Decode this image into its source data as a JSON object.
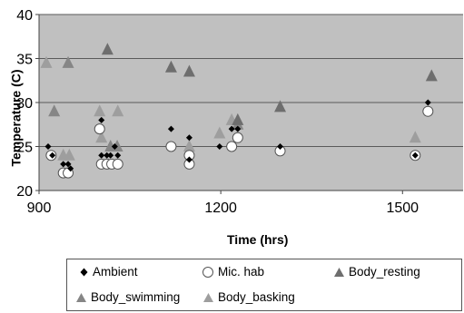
{
  "chart_data": {
    "type": "scatter",
    "title": "",
    "xlabel": "Time (hrs)",
    "ylabel": "Temperature (C)",
    "xlim": [
      900,
      1600
    ],
    "ylim": [
      20,
      40
    ],
    "xticks": [
      900,
      1200,
      1500
    ],
    "yticks": [
      20,
      25,
      30,
      35,
      40
    ],
    "grid": true,
    "legend_position": "bottom",
    "plot_background": "#c0c0c0",
    "series": [
      {
        "name": "Ambient",
        "marker": "diamond",
        "color": "#000000",
        "points": [
          [
            915,
            25
          ],
          [
            922,
            24
          ],
          [
            940,
            23
          ],
          [
            948,
            23
          ],
          [
            952,
            22.5
          ],
          [
            1003,
            28
          ],
          [
            1003,
            24
          ],
          [
            1012,
            24
          ],
          [
            1018,
            24
          ],
          [
            1025,
            25
          ],
          [
            1030,
            24
          ],
          [
            1118,
            27
          ],
          [
            1148,
            26
          ],
          [
            1148,
            23.5
          ],
          [
            1198,
            25
          ],
          [
            1218,
            27
          ],
          [
            1228,
            27
          ],
          [
            1298,
            25
          ],
          [
            1521,
            24
          ],
          [
            1542,
            30
          ]
        ]
      },
      {
        "name": "Mic. hab",
        "marker": "circle-open",
        "color": "#ffffff",
        "points": [
          [
            920,
            24
          ],
          [
            940,
            22
          ],
          [
            948,
            22
          ],
          [
            1000,
            27
          ],
          [
            1003,
            23
          ],
          [
            1012,
            23
          ],
          [
            1020,
            23
          ],
          [
            1030,
            23
          ],
          [
            1118,
            25
          ],
          [
            1148,
            24
          ],
          [
            1148,
            23
          ],
          [
            1218,
            25
          ],
          [
            1228,
            26
          ],
          [
            1298,
            24.5
          ],
          [
            1521,
            24
          ],
          [
            1542,
            29
          ]
        ]
      },
      {
        "name": "Body_resting",
        "marker": "triangle",
        "color": "#6e6e6e",
        "points": [
          [
            1013,
            36
          ],
          [
            1118,
            34
          ],
          [
            1148,
            33.5
          ],
          [
            1228,
            28
          ],
          [
            1298,
            29.5
          ],
          [
            1548,
            33
          ]
        ]
      },
      {
        "name": "Body_swimming",
        "marker": "triangle",
        "color": "#868686",
        "points": [
          [
            925,
            29
          ],
          [
            948,
            34.5
          ],
          [
            1018,
            25
          ],
          [
            1029,
            25
          ],
          [
            1228,
            27.5
          ]
        ]
      },
      {
        "name": "Body_basking",
        "marker": "triangle",
        "color": "#9e9e9e",
        "points": [
          [
            912,
            34.5
          ],
          [
            940,
            24
          ],
          [
            950,
            24
          ],
          [
            1000,
            29
          ],
          [
            1003,
            26
          ],
          [
            1030,
            29
          ],
          [
            1148,
            25
          ],
          [
            1198,
            26.5
          ],
          [
            1218,
            28
          ],
          [
            1521,
            26
          ]
        ]
      }
    ]
  }
}
